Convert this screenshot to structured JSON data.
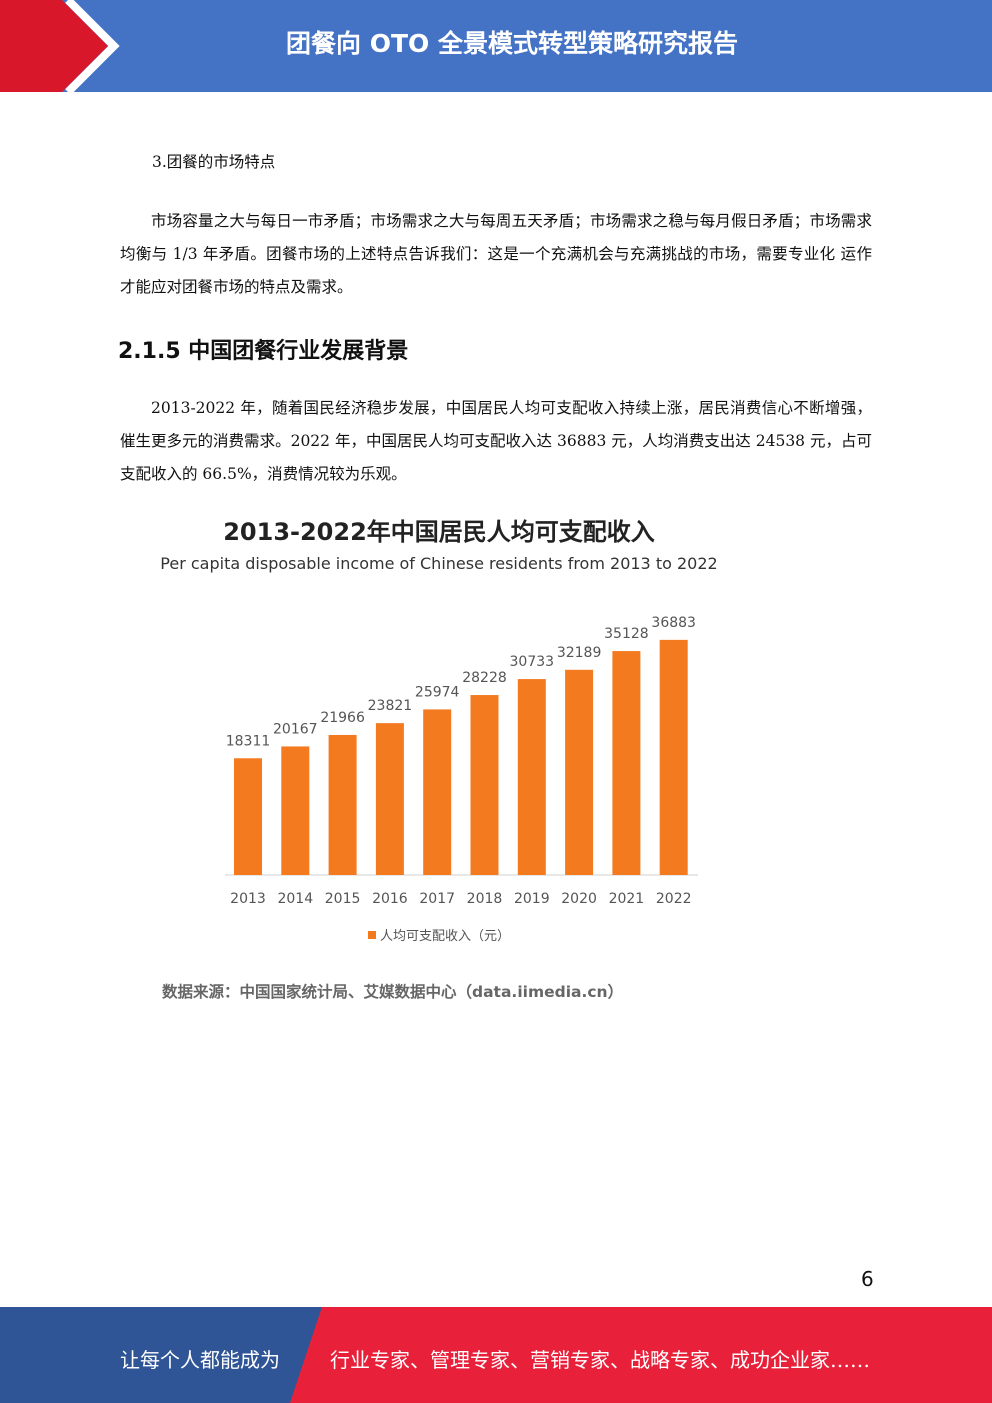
{
  "header": {
    "title": "团餐向 OTO 全景模式转型策略研究报告"
  },
  "body": {
    "item": "3.团餐的市场特点",
    "paragraph1": "市场容量之大与每日一市矛盾；市场需求之大与每周五天矛盾；市场需求之稳与每月假日矛盾；市场需求均衡与 1/3 年矛盾。团餐市场的上述特点告诉我们：这是一个充满机会与充满挑战的市场，需要专业化 运作才能应对团餐市场的特点及需求。",
    "heading": "2.1.5 中国团餐行业发展背景",
    "paragraph2": "2013-2022 年，随着国民经济稳步发展，中国居民人均可支配收入持续上涨，居民消费信心不断增强，催生更多元的消费需求。2022 年，中国居民人均可支配收入达 36883 元，人均消费支出达 24538 元，占可支配收入的 66.5%，消费情况较为乐观。"
  },
  "chart_data": {
    "type": "bar",
    "title": "2013-2022年中国居民人均可支配收入",
    "subtitle": "Per capita disposable income of Chinese residents from 2013 to 2022",
    "categories": [
      "2013",
      "2014",
      "2015",
      "2016",
      "2017",
      "2018",
      "2019",
      "2020",
      "2021",
      "2022"
    ],
    "series": [
      {
        "name": "人均可支配收入（元）",
        "color": "#f47a20",
        "values": [
          18311,
          20167,
          21966,
          23821,
          25974,
          28228,
          30733,
          32189,
          35128,
          36883
        ]
      }
    ],
    "ylim": [
      0,
      40000
    ],
    "source": "数据来源：中国国家统计局、艾媒数据中心（data.iimedia.cn）"
  },
  "page_number": "6",
  "footer": {
    "lead": "让每个人都能成为",
    "slogan": "行业专家、管理专家、营销专家、战略专家、成功企业家……"
  }
}
